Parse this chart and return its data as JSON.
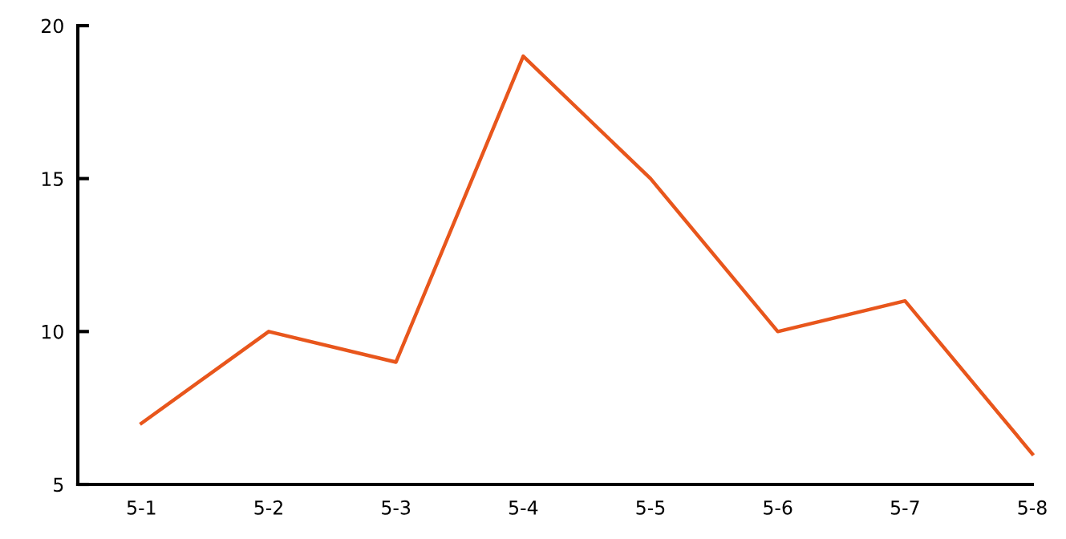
{
  "chart_data": {
    "type": "line",
    "categories": [
      "5-1",
      "5-2",
      "5-3",
      "5-4",
      "5-5",
      "5-6",
      "5-7",
      "5-8"
    ],
    "series": [
      {
        "color": "#e8561c",
        "values": [
          7,
          10,
          9,
          19,
          15,
          10,
          11,
          6
        ]
      }
    ],
    "ylim": [
      5,
      20
    ],
    "yticks": [
      5,
      10,
      15,
      20
    ],
    "grid": false,
    "legend": false,
    "marker": "none",
    "line_style": "solid"
  }
}
